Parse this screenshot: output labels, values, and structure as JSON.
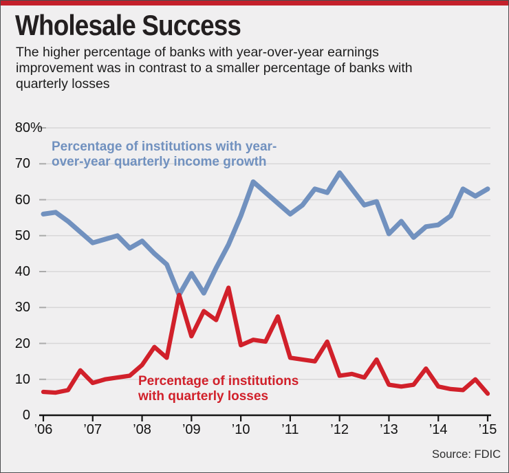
{
  "header": {
    "title": "Wholesale Success",
    "subtitle_lines": [
      "The higher percentage of banks with year-over-year earnings",
      "improvement was in contrast to a smaller percentage of banks with",
      "quarterly losses"
    ]
  },
  "source": "Source: FDIC",
  "colors": {
    "top_bar": "#c4202b",
    "background": "#f0eff0",
    "grid": "#d8d7d8",
    "tick": "#ababab",
    "axis": "#151515",
    "line_blue": "#7191bf",
    "line_red": "#d1202a"
  },
  "chart_data": {
    "type": "line",
    "x_unit": "quarterly",
    "x_start": "2006 Q1",
    "x_end": "2015 Q1",
    "x_tick_labels": [
      "’06",
      "’07",
      "’08",
      "’09",
      "’10",
      "’11",
      "’12",
      "’13",
      "’14",
      "’15"
    ],
    "y_tick_labels": [
      "80%",
      "70",
      "60",
      "50",
      "40",
      "30",
      "20",
      "10",
      "0"
    ],
    "ylim": [
      0,
      80
    ],
    "grid": "horizontal",
    "legend": "inline-labels",
    "series": [
      {
        "name": "Percentage of institutions with year-over-year quarterly income growth",
        "label_lines": [
          "Percentage of institutions with year-",
          "over-year quarterly income growth"
        ],
        "color": "#7191bf",
        "values": [
          56,
          56.5,
          54,
          51,
          48,
          49,
          50,
          46.5,
          48.5,
          45,
          42,
          33.5,
          39.5,
          34,
          41,
          47.5,
          55.5,
          65,
          62,
          59,
          56,
          58.5,
          63,
          62,
          67.5,
          63,
          58.5,
          59.5,
          50.5,
          54,
          49.5,
          52.5,
          53,
          55.5,
          63,
          61,
          63
        ]
      },
      {
        "name": "Percentage of institutions with quarterly losses",
        "label_lines": [
          "Percentage of institutions",
          "with quarterly losses"
        ],
        "color": "#d1202a",
        "values": [
          6.5,
          6.3,
          7,
          12.5,
          9,
          10,
          10.5,
          11,
          14,
          19,
          16,
          33.5,
          22,
          29,
          26.5,
          35.5,
          19.5,
          21,
          20.5,
          27.5,
          16,
          15.5,
          15,
          20.5,
          11,
          11.5,
          10.5,
          15.5,
          8.5,
          8,
          8.5,
          13,
          8,
          7.3,
          7,
          10,
          6
        ]
      }
    ]
  }
}
